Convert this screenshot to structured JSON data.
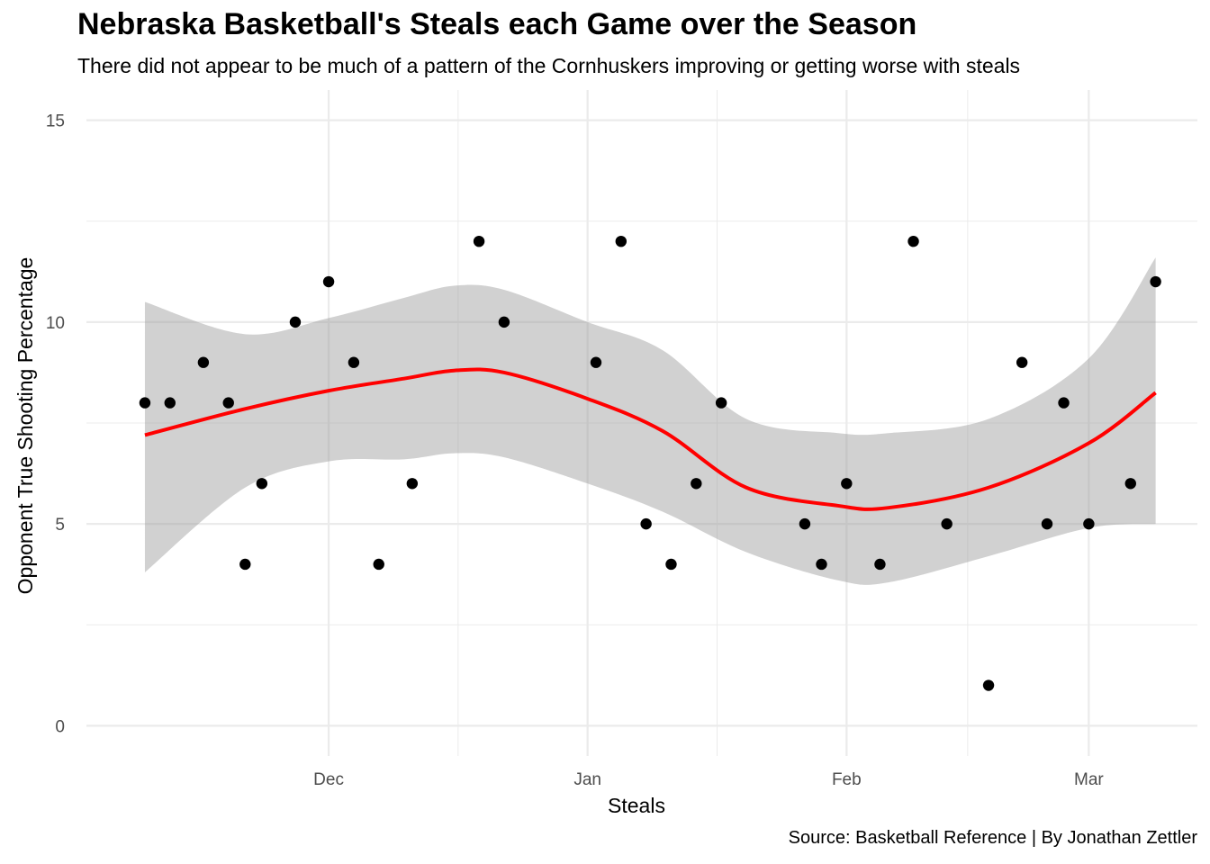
{
  "title": "Nebraska Basketball's Steals each Game over the Season",
  "subtitle": "There did not appear to be much of a pattern of the Cornhuskers improving or getting worse with steals",
  "caption": "Source: Basketball Reference | By Jonathan Zettler",
  "colors": {
    "points": "#000000",
    "smooth_line": "#ff0000",
    "confidence_band": "#999999",
    "grid": "#ebebeb"
  },
  "chart_data": {
    "type": "scatter",
    "xlabel": "Steals",
    "ylabel": "Opponent True Shooting Percentage",
    "x_ticks": [
      {
        "date": "2019-12-01",
        "label": "Dec"
      },
      {
        "date": "2020-01-01",
        "label": "Jan"
      },
      {
        "date": "2020-02-01",
        "label": "Feb"
      },
      {
        "date": "2020-03-01",
        "label": "Mar"
      }
    ],
    "y_ticks": [
      0,
      5,
      10,
      15
    ],
    "xlim": [
      "2019-11-02",
      "2020-03-14"
    ],
    "ylim": [
      -0.75,
      15.75
    ],
    "grid": true,
    "legend": "none",
    "points": [
      {
        "x": "2019-11-09",
        "y": 8
      },
      {
        "x": "2019-11-12",
        "y": 8
      },
      {
        "x": "2019-11-16",
        "y": 9
      },
      {
        "x": "2019-11-19",
        "y": 8
      },
      {
        "x": "2019-11-21",
        "y": 4
      },
      {
        "x": "2019-11-23",
        "y": 6
      },
      {
        "x": "2019-11-27",
        "y": 10
      },
      {
        "x": "2019-12-01",
        "y": 11
      },
      {
        "x": "2019-12-04",
        "y": 9
      },
      {
        "x": "2019-12-07",
        "y": 4
      },
      {
        "x": "2019-12-11",
        "y": 6
      },
      {
        "x": "2019-12-19",
        "y": 12
      },
      {
        "x": "2019-12-22",
        "y": 10
      },
      {
        "x": "2020-01-02",
        "y": 9
      },
      {
        "x": "2020-01-05",
        "y": 12
      },
      {
        "x": "2020-01-08",
        "y": 5
      },
      {
        "x": "2020-01-11",
        "y": 4
      },
      {
        "x": "2020-01-14",
        "y": 6
      },
      {
        "x": "2020-01-17",
        "y": 8
      },
      {
        "x": "2020-01-27",
        "y": 5
      },
      {
        "x": "2020-01-29",
        "y": 4
      },
      {
        "x": "2020-02-01",
        "y": 6
      },
      {
        "x": "2020-02-05",
        "y": 4
      },
      {
        "x": "2020-02-09",
        "y": 12
      },
      {
        "x": "2020-02-13",
        "y": 5
      },
      {
        "x": "2020-02-18",
        "y": 1
      },
      {
        "x": "2020-02-22",
        "y": 9
      },
      {
        "x": "2020-02-25",
        "y": 5
      },
      {
        "x": "2020-02-27",
        "y": 8
      },
      {
        "x": "2020-03-01",
        "y": 5
      },
      {
        "x": "2020-03-06",
        "y": 6
      },
      {
        "x": "2020-03-09",
        "y": 11
      }
    ],
    "smooth": {
      "method": "loess",
      "x": [
        "2019-11-09",
        "2019-11-21",
        "2019-12-01",
        "2019-12-10",
        "2019-12-16",
        "2019-12-22",
        "2020-01-01",
        "2020-01-10",
        "2020-01-20",
        "2020-01-31",
        "2020-02-06",
        "2020-02-18",
        "2020-03-01",
        "2020-03-09"
      ],
      "fit": [
        7.2,
        7.85,
        8.3,
        8.6,
        8.8,
        8.75,
        8.1,
        7.3,
        5.9,
        5.45,
        5.4,
        5.9,
        7.0,
        8.25
      ],
      "lower": [
        3.8,
        5.9,
        6.55,
        6.6,
        6.75,
        6.65,
        6.0,
        5.3,
        4.3,
        3.6,
        3.55,
        4.2,
        4.9,
        5.0
      ],
      "upper": [
        10.5,
        9.7,
        10.1,
        10.6,
        10.9,
        10.8,
        10.0,
        9.3,
        7.6,
        7.25,
        7.25,
        7.6,
        9.1,
        11.6
      ]
    }
  }
}
